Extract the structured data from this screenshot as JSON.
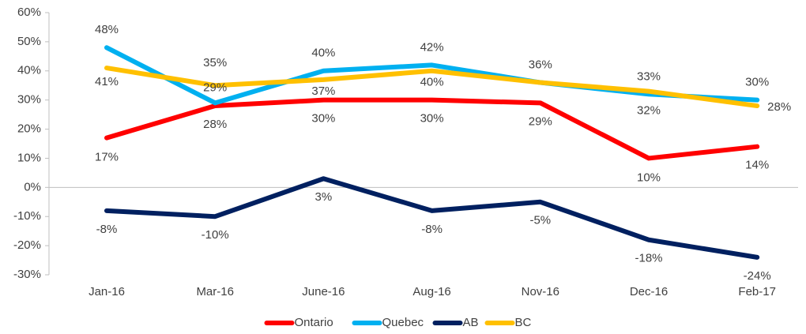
{
  "chart_data": {
    "type": "line",
    "categories": [
      "Jan-16",
      "Mar-16",
      "June-16",
      "Aug-16",
      "Nov-16",
      "Dec-16",
      "Feb-17"
    ],
    "series": [
      {
        "name": "Ontario",
        "color": "#ff0000",
        "values": [
          17,
          28,
          30,
          30,
          29,
          10,
          14
        ],
        "value_labels": [
          "17%",
          "28%",
          "30%",
          "30%",
          "29%",
          "10%",
          "14%"
        ]
      },
      {
        "name": "Quebec",
        "color": "#00b0f0",
        "values": [
          48,
          29,
          40,
          42,
          36,
          32,
          30
        ],
        "value_labels": [
          "48%",
          "29%",
          "40%",
          "42%",
          "36%",
          "32%",
          "30%"
        ]
      },
      {
        "name": "AB",
        "color": "#002060",
        "values": [
          -8,
          -10,
          3,
          -8,
          -5,
          -18,
          -24
        ],
        "value_labels": [
          "-8%",
          "-10%",
          "3%",
          "-8%",
          "-5%",
          "-18%",
          "-24%"
        ]
      },
      {
        "name": "BC",
        "color": "#ffc000",
        "values": [
          41,
          35,
          37,
          40,
          36,
          33,
          28
        ],
        "value_labels": [
          "41%",
          "35%",
          "37%",
          "40%",
          null,
          "33%",
          "28%"
        ]
      }
    ],
    "ylim": [
      -30,
      60
    ],
    "yticks": [
      {
        "value": -30,
        "label": "-30%"
      },
      {
        "value": -20,
        "label": "-20%"
      },
      {
        "value": -10,
        "label": "-10%"
      },
      {
        "value": 0,
        "label": "0%"
      },
      {
        "value": 10,
        "label": "10%"
      },
      {
        "value": 20,
        "label": "20%"
      },
      {
        "value": 30,
        "label": "30%"
      },
      {
        "value": 40,
        "label": "40%"
      },
      {
        "value": 50,
        "label": "50%"
      },
      {
        "value": 60,
        "label": "60%"
      }
    ],
    "legend": "bottom"
  }
}
